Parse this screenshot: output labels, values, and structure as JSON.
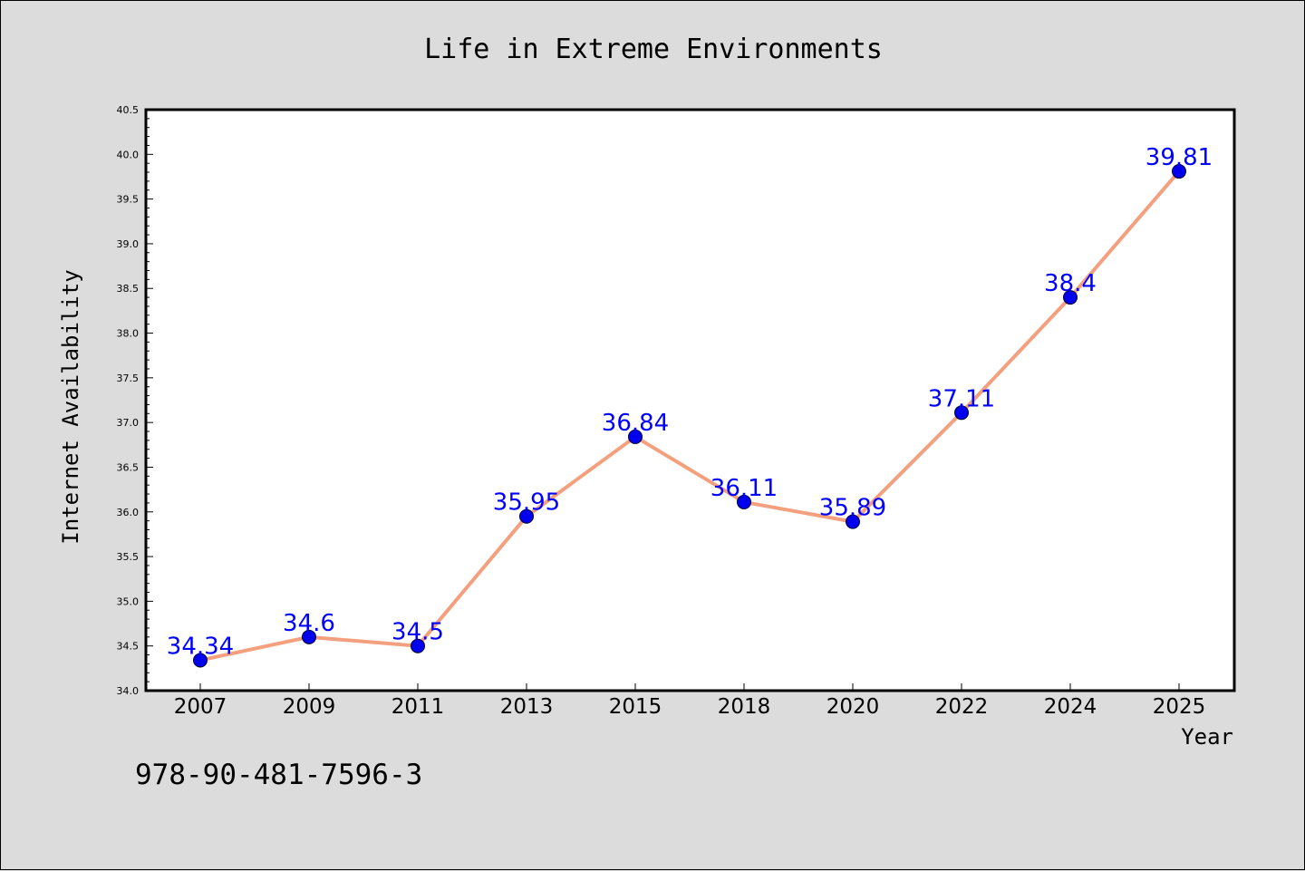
{
  "chart_data": {
    "type": "line",
    "title": "Life in Extreme Environments",
    "xlabel": "Year",
    "ylabel": "Internet Availability",
    "categories": [
      "2007",
      "2009",
      "2011",
      "2013",
      "2015",
      "2018",
      "2020",
      "2022",
      "2024",
      "2025"
    ],
    "series": [
      {
        "values": [
          34.34,
          34.6,
          34.5,
          35.95,
          36.84,
          36.11,
          35.89,
          37.11,
          38.4,
          39.81
        ],
        "labels": [
          "34.34",
          "34.6",
          "34.5",
          "35.95",
          "36.84",
          "36.11",
          "35.89",
          "37.11",
          "38.4",
          "39.81"
        ]
      }
    ],
    "ylim": [
      34.0,
      40.5
    ],
    "yticks": [
      "34.0",
      "34.5",
      "35.0",
      "35.5",
      "36.0",
      "36.5",
      "37.0",
      "37.5",
      "38.0",
      "38.5",
      "39.0",
      "39.5",
      "40.0",
      "40.5"
    ],
    "grid": false,
    "legend": "none",
    "colors": {
      "line": "#f4a07e",
      "marker": "#0000ee",
      "label": "#0000ff",
      "plot_bg": "#ffffff",
      "page_bg": "#dcdcdc"
    }
  },
  "footer": {
    "isbn": "978-90-481-7596-3"
  }
}
